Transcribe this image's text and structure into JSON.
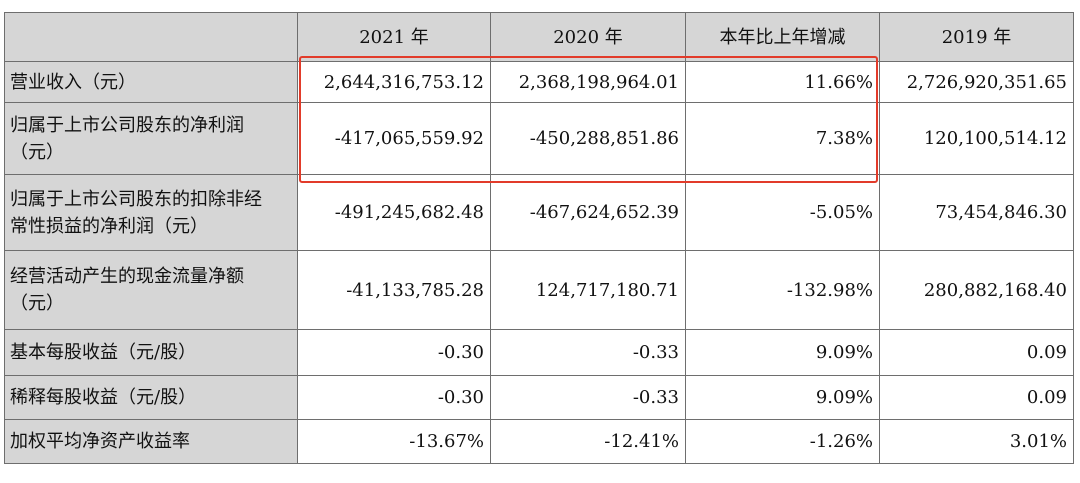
{
  "header": [
    "",
    "2021 年",
    "2020 年",
    "本年比上年增减",
    "2019 年"
  ],
  "rows": [
    {
      "label": "营业收入（元）",
      "values": [
        "2,644,316,753.12",
        "2,368,198,964.01",
        "11.66%",
        "2,726,920,351.65"
      ]
    },
    {
      "label_lines": [
        "归属于上市公司股东的净利润",
        "（元）"
      ],
      "values": [
        "-417,065,559.92",
        "-450,288,851.86",
        "7.38%",
        "120,100,514.12"
      ]
    },
    {
      "label_lines": [
        "归属于上市公司股东的扣除非经",
        "常性损益的净利润（元）"
      ],
      "values": [
        "-491,245,682.48",
        "-467,624,652.39",
        "-5.05%",
        "73,454,846.30"
      ]
    },
    {
      "label_lines": [
        "经营活动产生的现金流量净额",
        "（元）"
      ],
      "values": [
        "-41,133,785.28",
        "124,717,180.71",
        "-132.98%",
        "280,882,168.40"
      ]
    },
    {
      "label": "基本每股收益（元/股）",
      "values": [
        "-0.30",
        "-0.33",
        "9.09%",
        "0.09"
      ]
    },
    {
      "label": "稀释每股收益（元/股）",
      "values": [
        "-0.30",
        "-0.33",
        "9.09%",
        "0.09"
      ]
    },
    {
      "label": "加权平均净资产收益率",
      "values": [
        "-13.67%",
        "-12.41%",
        "-1.26%",
        "3.01%"
      ]
    }
  ],
  "highlight_color": "#e23b2a"
}
